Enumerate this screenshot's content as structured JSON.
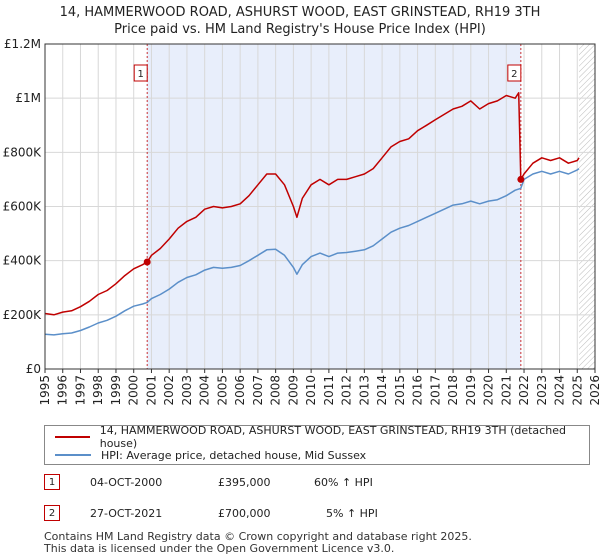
{
  "title_line1": "14, HAMMERWOOD ROAD, ASHURST WOOD, EAST GRINSTEAD, RH19 3TH",
  "title_line2": "Price paid vs. HM Land Registry's House Price Index (HPI)",
  "colors": {
    "property": "#c00000",
    "hpi": "#5b8fc9",
    "band": "#e8eefb",
    "grid": "#d8d8d8"
  },
  "legend": {
    "property_label": "14, HAMMERWOOD ROAD, ASHURST WOOD, EAST GRINSTEAD, RH19 3TH (detached house)",
    "hpi_label": "HPI: Average price, detached house, Mid Sussex"
  },
  "sales": [
    {
      "num": "1",
      "date": "04-OCT-2000",
      "price": "£395,000",
      "hpi": "60% ↑ HPI"
    },
    {
      "num": "2",
      "date": "27-OCT-2021",
      "price": "£700,000",
      "hpi": "5% ↑ HPI"
    }
  ],
  "footer": {
    "line1": "Contains HM Land Registry data © Crown copyright and database right 2025.",
    "line2": "This data is licensed under the Open Government Licence v3.0."
  },
  "chart_data": {
    "type": "line",
    "title": "14, HAMMERWOOD ROAD, ASHURST WOOD, EAST GRINSTEAD, RH19 3TH — Price paid vs. HM Land Registry's House Price Index (HPI)",
    "xlabel": "",
    "ylabel": "",
    "xlim": [
      1995,
      2026
    ],
    "ylim": [
      0,
      1200000
    ],
    "y_ticks": [
      {
        "value": 0,
        "label": "£0"
      },
      {
        "value": 200000,
        "label": "£200K"
      },
      {
        "value": 400000,
        "label": "£400K"
      },
      {
        "value": 600000,
        "label": "£600K"
      },
      {
        "value": 800000,
        "label": "£800K"
      },
      {
        "value": 1000000,
        "label": "£1M"
      },
      {
        "value": 1200000,
        "label": "£1.2M"
      }
    ],
    "x_ticks": [
      "1995",
      "1996",
      "1997",
      "1998",
      "1999",
      "2000",
      "2001",
      "2002",
      "2003",
      "2004",
      "2005",
      "2006",
      "2007",
      "2008",
      "2009",
      "2010",
      "2011",
      "2012",
      "2013",
      "2014",
      "2015",
      "2016",
      "2017",
      "2018",
      "2019",
      "2020",
      "2021",
      "2022",
      "2023",
      "2024",
      "2025",
      "2026"
    ],
    "grid": true,
    "legend_position": "below",
    "shaded_band": {
      "from": 2000.76,
      "to": 2021.82
    },
    "hatched_region": {
      "from": 2025.1,
      "to": 2026
    },
    "markers": [
      {
        "label": "1",
        "x": 2000.76,
        "y": 395000
      },
      {
        "label": "2",
        "x": 2021.82,
        "y": 700000
      }
    ],
    "series": [
      {
        "name": "14, HAMMERWOOD ROAD, ASHURST WOOD, EAST GRINSTEAD, RH19 3TH (detached house)",
        "x": [
          1995,
          1995.5,
          1996,
          1996.5,
          1997,
          1997.5,
          1998,
          1998.5,
          1999,
          1999.5,
          2000,
          2000.5,
          2000.76,
          2001,
          2001.5,
          2002,
          2002.5,
          2003,
          2003.5,
          2004,
          2004.5,
          2005,
          2005.5,
          2006,
          2006.5,
          2007,
          2007.5,
          2008,
          2008.5,
          2009,
          2009.2,
          2009.5,
          2010,
          2010.5,
          2011,
          2011.5,
          2012,
          2012.5,
          2013,
          2013.5,
          2014,
          2014.5,
          2015,
          2015.5,
          2016,
          2016.5,
          2017,
          2017.5,
          2018,
          2018.5,
          2019,
          2019.5,
          2020,
          2020.5,
          2021,
          2021.5,
          2021.7,
          2021.82,
          2022,
          2022.5,
          2023,
          2023.5,
          2024,
          2024.5,
          2025,
          2025.1
        ],
        "y": [
          205000,
          200000,
          210000,
          215000,
          230000,
          250000,
          275000,
          290000,
          315000,
          345000,
          370000,
          385000,
          395000,
          420000,
          445000,
          480000,
          520000,
          545000,
          560000,
          590000,
          600000,
          595000,
          600000,
          610000,
          640000,
          680000,
          720000,
          720000,
          680000,
          600000,
          560000,
          630000,
          680000,
          700000,
          680000,
          700000,
          700000,
          710000,
          720000,
          740000,
          780000,
          820000,
          840000,
          850000,
          880000,
          900000,
          920000,
          940000,
          960000,
          970000,
          990000,
          960000,
          980000,
          990000,
          1010000,
          1000000,
          1020000,
          700000,
          720000,
          760000,
          780000,
          770000,
          780000,
          760000,
          770000,
          780000
        ]
      },
      {
        "name": "HPI: Average price, detached house, Mid Sussex",
        "x": [
          1995,
          1995.5,
          1996,
          1996.5,
          1997,
          1997.5,
          1998,
          1998.5,
          1999,
          1999.5,
          2000,
          2000.5,
          2000.76,
          2001,
          2001.5,
          2002,
          2002.5,
          2003,
          2003.5,
          2004,
          2004.5,
          2005,
          2005.5,
          2006,
          2006.5,
          2007,
          2007.5,
          2008,
          2008.5,
          2009,
          2009.2,
          2009.5,
          2010,
          2010.5,
          2011,
          2011.5,
          2012,
          2012.5,
          2013,
          2013.5,
          2014,
          2014.5,
          2015,
          2015.5,
          2016,
          2016.5,
          2017,
          2017.5,
          2018,
          2018.5,
          2019,
          2019.5,
          2020,
          2020.5,
          2021,
          2021.5,
          2021.82,
          2022,
          2022.5,
          2023,
          2023.5,
          2024,
          2024.5,
          2025,
          2025.1
        ],
        "y": [
          128000,
          126000,
          130000,
          133000,
          142000,
          155000,
          170000,
          180000,
          195000,
          215000,
          232000,
          240000,
          246000,
          260000,
          275000,
          295000,
          320000,
          338000,
          348000,
          365000,
          375000,
          372000,
          375000,
          382000,
          400000,
          420000,
          440000,
          442000,
          420000,
          375000,
          350000,
          385000,
          415000,
          428000,
          415000,
          428000,
          430000,
          435000,
          440000,
          455000,
          480000,
          505000,
          520000,
          530000,
          545000,
          560000,
          575000,
          590000,
          605000,
          610000,
          620000,
          610000,
          620000,
          625000,
          640000,
          660000,
          667000,
          700000,
          720000,
          730000,
          720000,
          730000,
          720000,
          735000,
          740000
        ]
      }
    ]
  }
}
